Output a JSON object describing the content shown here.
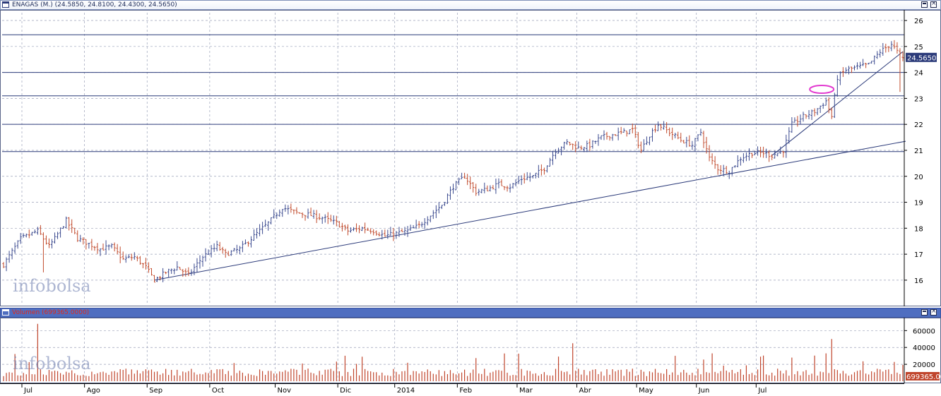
{
  "price_panel": {
    "title": "ENAGAS (M.) (24.5850, 24.8100, 24.4300, 24.5650)",
    "last_value_label": "24.5650",
    "watermark": "infobolsa"
  },
  "volume_panel": {
    "title": "Volumen (699365.0000)",
    "last_value_label": "699365.0000",
    "watermark": "infobolsa"
  },
  "colors": {
    "up": "#3b4a8f",
    "down": "#c14a2c",
    "grid": "#9aa0b8",
    "horizontal_line": "#2c3b7a",
    "trendline": "#2c3b7a",
    "ellipse": "#e23ad0",
    "volume_bar": "#c0452c",
    "last_value_box": "#2c3b7a"
  },
  "chart_data": [
    {
      "type": "ohlc",
      "name": "ENAGAS",
      "x_labels": [
        "Jul",
        "Ago",
        "Sep",
        "Oct",
        "Nov",
        "Dic",
        "2014",
        "Feb",
        "Mar",
        "Abr",
        "May",
        "Jun",
        "Jul"
      ],
      "y_ticks": [
        16,
        17,
        18,
        19,
        20,
        21,
        22,
        23,
        24,
        25,
        26
      ],
      "ylim": [
        15.1,
        26.3
      ],
      "grid": true,
      "last": {
        "open": 24.585,
        "high": 24.81,
        "low": 24.43,
        "close": 24.565
      },
      "horizontal_levels": [
        25.45,
        24.0,
        23.1,
        22.0,
        20.95
      ],
      "anchors": [
        [
          0,
          16.6
        ],
        [
          6,
          17.6
        ],
        [
          12,
          17.9
        ],
        [
          16,
          17.3
        ],
        [
          18,
          17.6
        ],
        [
          22,
          18.3
        ],
        [
          26,
          17.6
        ],
        [
          30,
          17.4
        ],
        [
          34,
          17.2
        ],
        [
          38,
          17.3
        ],
        [
          42,
          16.8
        ],
        [
          46,
          16.9
        ],
        [
          50,
          16.5
        ],
        [
          53,
          16.0
        ],
        [
          57,
          16.3
        ],
        [
          61,
          16.5
        ],
        [
          65,
          16.2
        ],
        [
          70,
          16.9
        ],
        [
          75,
          17.3
        ],
        [
          78,
          17.0
        ],
        [
          83,
          17.2
        ],
        [
          88,
          17.7
        ],
        [
          93,
          18.2
        ],
        [
          98,
          18.8
        ],
        [
          103,
          18.6
        ],
        [
          108,
          18.5
        ],
        [
          112,
          18.4
        ],
        [
          117,
          18.2
        ],
        [
          121,
          17.9
        ],
        [
          126,
          18.0
        ],
        [
          130,
          17.9
        ],
        [
          134,
          17.7
        ],
        [
          138,
          17.8
        ],
        [
          142,
          17.9
        ],
        [
          146,
          18.1
        ],
        [
          150,
          18.5
        ],
        [
          154,
          18.9
        ],
        [
          158,
          19.6
        ],
        [
          162,
          20.0
        ],
        [
          166,
          19.4
        ],
        [
          170,
          19.5
        ],
        [
          174,
          19.7
        ],
        [
          178,
          19.6
        ],
        [
          182,
          19.9
        ],
        [
          186,
          20.0
        ],
        [
          190,
          20.3
        ],
        [
          194,
          21.0
        ],
        [
          198,
          21.3
        ],
        [
          202,
          21.1
        ],
        [
          206,
          21.2
        ],
        [
          210,
          21.5
        ],
        [
          214,
          21.6
        ],
        [
          218,
          21.7
        ],
        [
          221,
          21.8
        ],
        [
          224,
          21.0
        ],
        [
          227,
          21.6
        ],
        [
          230,
          22.0
        ],
        [
          234,
          21.7
        ],
        [
          238,
          21.4
        ],
        [
          242,
          21.2
        ],
        [
          245,
          21.7
        ],
        [
          248,
          20.7
        ],
        [
          251,
          20.3
        ],
        [
          255,
          20.2
        ],
        [
          259,
          20.7
        ],
        [
          263,
          20.9
        ],
        [
          267,
          20.9
        ],
        [
          270,
          20.8
        ],
        [
          274,
          21.0
        ],
        [
          277,
          22.0
        ],
        [
          281,
          22.3
        ],
        [
          285,
          22.5
        ],
        [
          289,
          22.9
        ],
        [
          291,
          22.3
        ],
        [
          293,
          23.8
        ],
        [
          296,
          24.1
        ],
        [
          300,
          24.2
        ],
        [
          304,
          24.3
        ],
        [
          308,
          24.8
        ],
        [
          312,
          25.1
        ],
        [
          314,
          24.8
        ],
        [
          316,
          24.565
        ]
      ],
      "trendlines": [
        {
          "from": [
            53,
            16.0
          ],
          "to": [
            317,
            21.35
          ]
        },
        {
          "from": [
            270,
            20.8
          ],
          "to": [
            316,
            24.8
          ]
        }
      ],
      "annotations": [
        {
          "type": "ellipse",
          "x": 287.5,
          "y": 23.35
        }
      ]
    },
    {
      "type": "bar",
      "name": "Volumen",
      "y_ticks": [
        20000,
        40000,
        60000
      ],
      "ylim": [
        0,
        72000
      ],
      "grid": true,
      "last": 699365.0
    }
  ]
}
